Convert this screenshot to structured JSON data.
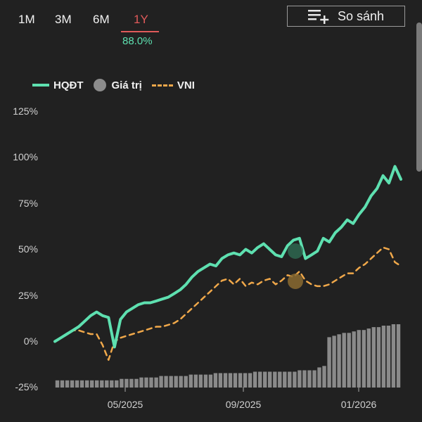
{
  "tabs": [
    {
      "label": "1M",
      "active": false
    },
    {
      "label": "3M",
      "active": false
    },
    {
      "label": "6M",
      "active": false
    },
    {
      "label": "1Y",
      "active": true
    }
  ],
  "period_return": "88.0%",
  "compare_button": {
    "label": "So sánh",
    "icon": "add-to-list-icon"
  },
  "legend": [
    {
      "name": "HQĐT",
      "color": "#5ee0b0",
      "style": "solid"
    },
    {
      "name": "Giá trị",
      "color": "#8c8c8c",
      "style": "dot"
    },
    {
      "name": "VNI",
      "color": "#f0a84a",
      "style": "dashed"
    }
  ],
  "chart_data": {
    "type": "line",
    "y_ticks": [
      "125%",
      "100%",
      "75%",
      "50%",
      "25%",
      "0%",
      "-25%"
    ],
    "x_ticks": [
      "05/2025",
      "09/2025",
      "01/2026"
    ],
    "ylim": [
      -25,
      125
    ],
    "series": [
      {
        "name": "HQĐT",
        "color": "#5ee0b0",
        "values": [
          0,
          2,
          4,
          6,
          8,
          11,
          14,
          16,
          14,
          13,
          -3,
          12,
          16,
          18,
          20,
          21,
          21,
          22,
          23,
          24,
          26,
          28,
          31,
          35,
          38,
          40,
          42,
          41,
          45,
          47,
          48,
          47,
          50,
          48,
          51,
          53,
          50,
          47,
          46,
          52,
          55,
          56,
          45,
          47,
          49,
          56,
          54,
          59,
          62,
          66,
          64,
          69,
          73,
          79,
          83,
          90,
          86,
          95,
          88
        ]
      },
      {
        "name": "VNI",
        "color": "#f0a84a",
        "values": [
          0,
          2,
          4,
          6,
          6,
          5,
          4,
          4,
          -2,
          -10,
          0,
          2,
          3,
          4,
          5,
          6,
          7,
          8,
          8,
          9,
          10,
          12,
          15,
          18,
          21,
          24,
          27,
          30,
          33,
          34,
          31,
          34,
          30,
          32,
          31,
          33,
          34,
          31,
          33,
          36,
          35,
          38,
          33,
          31,
          30,
          30,
          31,
          33,
          35,
          37,
          37,
          40,
          42,
          45,
          48,
          51,
          50,
          43,
          41
        ]
      }
    ],
    "volume_bars": [
      5,
      5,
      5,
      5,
      5,
      5,
      5,
      5,
      5,
      5,
      5,
      5,
      5,
      6,
      6,
      6,
      6,
      7,
      7,
      7,
      7,
      8,
      8,
      8,
      8,
      8,
      8,
      9,
      9,
      9,
      9,
      9,
      10,
      10,
      10,
      10,
      10,
      10,
      10,
      10,
      11,
      11,
      11,
      11,
      11,
      11,
      11,
      11,
      11,
      12,
      12,
      12,
      12,
      14,
      15,
      35,
      36,
      37,
      38,
      38,
      39,
      40,
      40,
      41,
      42,
      42,
      43,
      43,
      44,
      44
    ]
  }
}
